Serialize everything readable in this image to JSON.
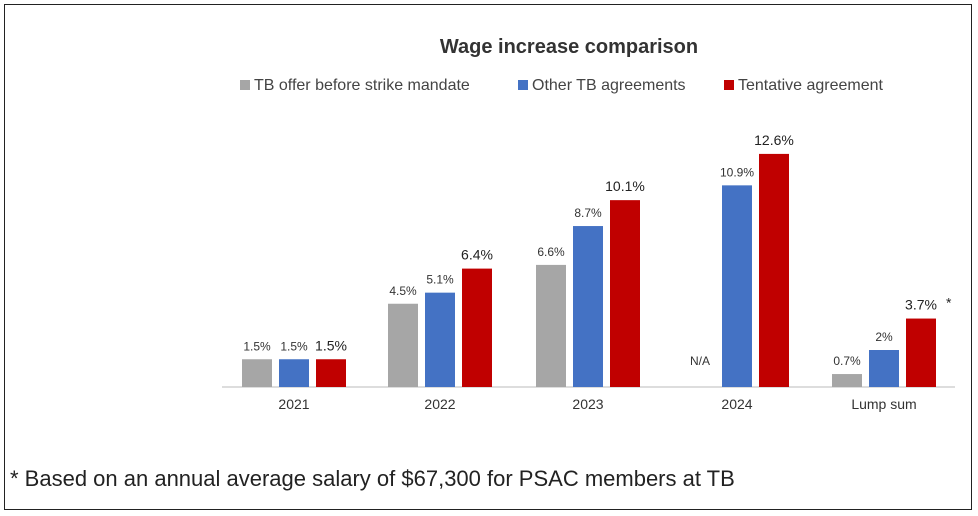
{
  "chart_data": {
    "type": "bar",
    "title": "Wage increase comparison",
    "categories": [
      "2021",
      "2022",
      "2023",
      "2024",
      "Lump sum"
    ],
    "series": [
      {
        "name": "TB offer before strike mandate",
        "color": "#a6a6a6",
        "values": [
          1.5,
          4.5,
          6.6,
          null,
          0.7
        ],
        "labels": [
          "1.5%",
          "4.5%",
          "6.6%",
          "N/A",
          "0.7%"
        ]
      },
      {
        "name": "Other TB agreements",
        "color": "#4472c4",
        "values": [
          1.5,
          5.1,
          8.7,
          10.9,
          2.0
        ],
        "labels": [
          "1.5%",
          "5.1%",
          "8.7%",
          "10.9%",
          "2%"
        ]
      },
      {
        "name": "Tentative agreement",
        "color": "#c00000",
        "values": [
          1.5,
          6.4,
          10.1,
          12.6,
          3.7
        ],
        "labels": [
          "1.5%",
          "6.4%",
          "10.1%",
          "12.6%",
          "3.7%"
        ]
      }
    ],
    "annotation": "*",
    "ylim": [
      0,
      14
    ],
    "xlabel": "",
    "ylabel": "",
    "grid": false,
    "legend_position": "top"
  },
  "footnote": "* Based on an annual average salary of $67,300 for PSAC members at TB"
}
